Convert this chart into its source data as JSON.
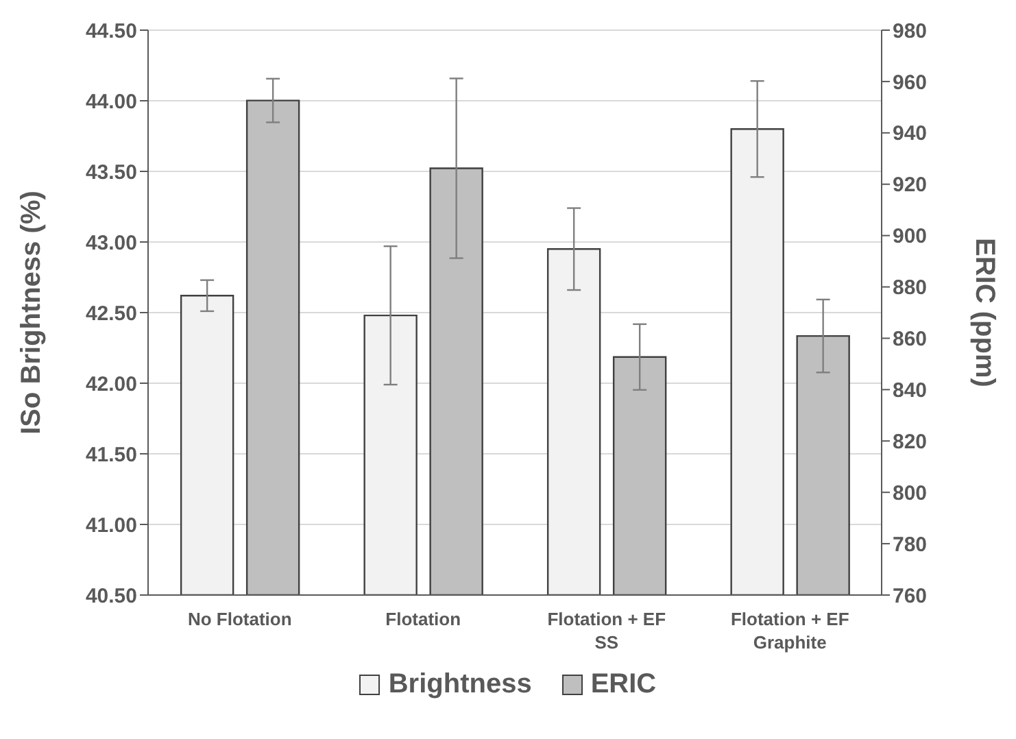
{
  "chart_data": {
    "type": "bar",
    "categories": [
      "No Flotation",
      "Flotation",
      "Flotation + EF SS",
      "Flotation + EF Graphite"
    ],
    "series": [
      {
        "name": "Brightness",
        "color": "#f2f2f2",
        "values": [
          42.62,
          42.48,
          42.95,
          43.8
        ],
        "errors": [
          0.11,
          0.49,
          0.29,
          0.34
        ]
      },
      {
        "name": "ERIC",
        "color": "#bfbfbf",
        "axis": "y2",
        "values": [
          952.6,
          926.2,
          852.7,
          860.9
        ],
        "errors": [
          8.5,
          35,
          12.8,
          14.2
        ]
      }
    ],
    "ylabel": "ISo Brightness (%)",
    "y2label": "ERIC (ppm)",
    "ylim": [
      40.5,
      44.5
    ],
    "yticks": [
      {
        "value": 40.5,
        "label": "40.50"
      },
      {
        "value": 41,
        "label": "41.00"
      },
      {
        "value": 41.5,
        "label": "41.50"
      },
      {
        "value": 42,
        "label": "42.00"
      },
      {
        "value": 42.5,
        "label": "42.50"
      },
      {
        "value": 43,
        "label": "43.00"
      },
      {
        "value": 43.5,
        "label": "43.50"
      },
      {
        "value": 44,
        "label": "44.00"
      },
      {
        "value": 44.5,
        "label": "44.50"
      }
    ],
    "y2lim": [
      760,
      980
    ],
    "y2ticks": [
      760,
      780,
      800,
      820,
      840,
      860,
      880,
      900,
      920,
      940,
      960,
      980
    ],
    "grid": "y",
    "legend": "bottom"
  }
}
